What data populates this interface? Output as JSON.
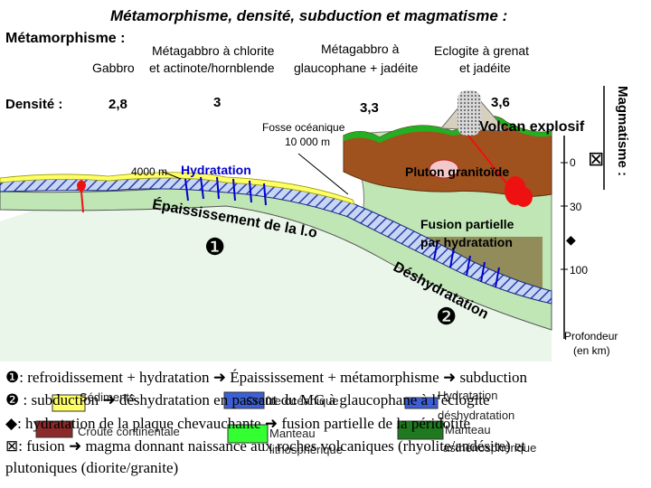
{
  "title": "Métamorphisme, densité, subduction et magmatisme :",
  "metamorphism": {
    "header": "Métamorphisme :",
    "gabbro": "Gabbro",
    "chlorite_line1": "Métagabbro à chlorite",
    "chlorite_line2": "et actinote/hornblende",
    "glauco_line1": "Métagabbro à",
    "glauco_line2": "glaucophane + jadéite",
    "eclogite_line1": "Eclogite à grenat",
    "eclogite_line2": "et jadéite"
  },
  "density": {
    "header": "Densité :",
    "values": [
      "2,8",
      "3",
      "3,3",
      "3,6"
    ]
  },
  "magmatism_label": "Magmatisme :",
  "labels": {
    "trench_line1": "Fosse océanique",
    "trench_line2": "10 000 m",
    "depth_4000": "4000 m",
    "hydration": "Hydratation",
    "thickening": "Épaississement de la l.o",
    "marker1": "❶",
    "marker2": "❷",
    "volcano": "Volcan explosif",
    "pluton": "Pluton  granitoïde",
    "fusion_line1": "Fusion partielle",
    "fusion_line2": "par hydratation",
    "dehydration": "Déshydratation",
    "depth_ticks": [
      "0",
      "30",
      "100"
    ],
    "depth_title_line1": "Profondeur",
    "depth_title_line2": "(en km)",
    "cross_symbol": "⊠",
    "diamond_symbol": "◆"
  },
  "legend": {
    "sediments": "Sédiments",
    "continental_crust": "Croûte continentale",
    "oceanic_crust": "Croûte océanique",
    "lithospheric_mantle_line1": "Manteau",
    "lithospheric_mantle_line2": "lithosphérique",
    "hydration_line1": "Hydratation",
    "hydration_line2": "déshydratation",
    "asthenospheric_mantle_line1": "Manteau",
    "asthenospheric_mantle_line2": "asthénosphérique"
  },
  "notes": {
    "line1": "❶: refroidissement + hydratation  ➜  Épaississement + métamorphisme  ➜  subduction",
    "line2": "❷ : subduction ➜ déshydratation en passant du MG à glaucophane à l’éclogite",
    "line3": "◆: hydratation de la plaque chevauchante ➜ fusion partielle de la péridotite",
    "line4": "⊠: fusion ➜ magma donnant naissance aux roches volcaniques (rhyolite/andésite) et",
    "line5": "plutoniques (diorite/granite)"
  },
  "colors": {
    "sediment": "#ffff66",
    "continental": "#a0521e",
    "oceanic": "#3d5fd6",
    "lithospheric": "#33cc33",
    "asthenospheric": "#1f7a1f",
    "hydration_arrow": "#0000cc",
    "magma": "#ee1111"
  }
}
